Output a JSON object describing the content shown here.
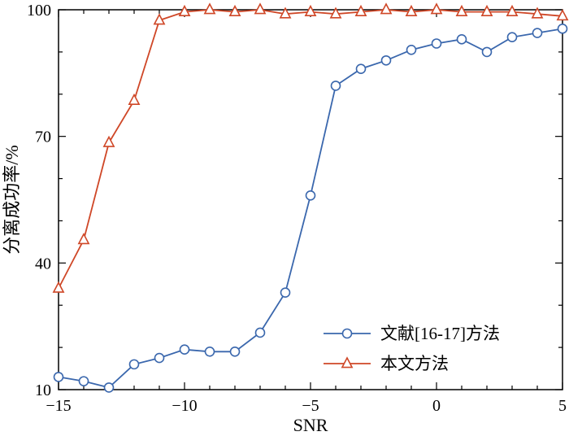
{
  "figure": {
    "background": "#ffffff",
    "border_color": "#000000"
  },
  "chart_data": {
    "type": "line",
    "title": "",
    "xlabel": "SNR",
    "ylabel": "分离成功率/%",
    "xlim": [
      -15,
      5
    ],
    "ylim": [
      10,
      100
    ],
    "x_ticks": [
      -15,
      -10,
      -5,
      0,
      5
    ],
    "x_tick_labels": [
      "−15",
      "−10",
      "−5",
      "0",
      "5"
    ],
    "y_ticks": [
      10,
      40,
      70,
      100
    ],
    "y_tick_labels": [
      "10",
      "40",
      "70",
      "100"
    ],
    "x_minor_step": 1,
    "y_minor_step": 10,
    "grid": false,
    "legend_position": "lower-right",
    "x": [
      -15,
      -14,
      -13,
      -12,
      -11,
      -10,
      -9,
      -8,
      -7,
      -6,
      -5,
      -4,
      -3,
      -2,
      -1,
      0,
      1,
      2,
      3,
      4,
      5
    ],
    "series": [
      {
        "name": "文献[16-17]方法",
        "marker": "circle",
        "color": "#3a67ad",
        "values": [
          13,
          12,
          10.5,
          16,
          17.5,
          19.5,
          19,
          19,
          23.5,
          33,
          56,
          82,
          86,
          88,
          90.5,
          92,
          93,
          90,
          93.5,
          94.5,
          95.5
        ]
      },
      {
        "name": "本文方法",
        "marker": "triangle",
        "color": "#cf4727",
        "values": [
          34,
          45.5,
          68.5,
          78.5,
          97.5,
          99.5,
          100,
          99.5,
          100,
          99,
          99.5,
          99,
          99.5,
          100,
          99.5,
          100,
          99.5,
          99.5,
          99.5,
          99,
          98.5
        ]
      }
    ]
  }
}
